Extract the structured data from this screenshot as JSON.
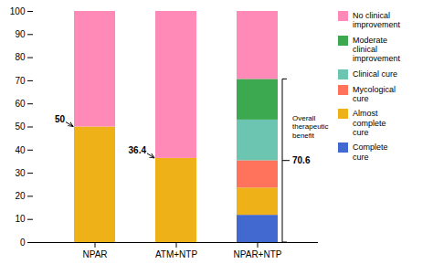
{
  "chart_data": {
    "type": "bar",
    "stacked": true,
    "categories": [
      "NPAR",
      "ATM+NTP",
      "NPAR+NTP"
    ],
    "series": [
      {
        "name": "Complete\ncure",
        "values": [
          0.0,
          0.0,
          11.8
        ]
      },
      {
        "name": "Almost\ncomplete\ncure",
        "values": [
          50.0,
          36.4,
          11.8
        ]
      },
      {
        "name": "Mycological\ncure",
        "values": [
          0.0,
          0.0,
          11.8
        ]
      },
      {
        "name": "Clinical cure",
        "values": [
          0.0,
          0.0,
          17.6
        ]
      },
      {
        "name": "Moderate\nclinical\nimprovement",
        "values": [
          0.0,
          0.0,
          17.6
        ]
      },
      {
        "name": "No clinical\nimprovement",
        "values": [
          50.0,
          63.6,
          29.4
        ]
      }
    ],
    "ylim": [
      0,
      100
    ],
    "yticks": [
      0,
      10,
      20,
      30,
      40,
      50,
      60,
      70,
      80,
      90,
      100
    ],
    "legend": "right",
    "annotations": [
      {
        "text": "50",
        "x": "NPAR",
        "y": 50,
        "arrow": true
      },
      {
        "text": "36.4",
        "x": "ATM+NTP",
        "y": 36.4,
        "arrow": true
      },
      {
        "text": "Overall\ntherapeutic\nbenefit",
        "x": "NPAR+NTP",
        "y": 50
      },
      {
        "text": "70.6",
        "x": "NPAR+NTP",
        "y1": 0,
        "y2": 70.6
      }
    ]
  }
}
